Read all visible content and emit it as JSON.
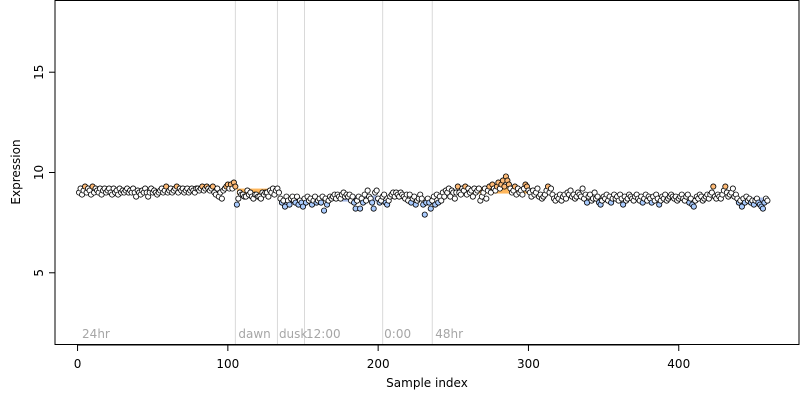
{
  "chart_data": {
    "type": "scatter",
    "title": "",
    "xlabel": "Sample index",
    "ylabel": "Expression",
    "xlim": [
      -15,
      480
    ],
    "ylim": [
      1.4,
      18.6
    ],
    "x_ticks": [
      0,
      100,
      200,
      300,
      400
    ],
    "y_ticks": [
      5,
      10,
      15
    ],
    "grid": false,
    "legend": "none",
    "colors": {
      "high": "#ffbb77",
      "low": "#aaccff",
      "neutral": "#ffffff",
      "point_edge": "#000000",
      "divider": "#d9d9d9",
      "segment_label": "#a6a6a6",
      "bar_high": "#ffa533",
      "bar_low": "#8fa8e0"
    },
    "dividers": [
      105,
      133,
      151,
      203,
      236
    ],
    "segment_labels": [
      {
        "text": "24hr",
        "x": 3
      },
      {
        "text": "dawn",
        "x": 107
      },
      {
        "text": "dusk",
        "x": 134
      },
      {
        "text": "12:00",
        "x": 152
      },
      {
        "text": "0:00",
        "x": 204
      },
      {
        "text": "48hr",
        "x": 238
      }
    ],
    "series": [
      {
        "x_start": 1,
        "y": [
          9.0,
          9.2,
          8.9,
          9.1,
          9.3,
          9.0,
          9.2,
          9.1,
          8.9,
          9.3,
          9.0,
          9.2,
          9.1,
          9.0,
          9.2,
          8.9,
          9.1,
          9.2,
          9.0,
          9.1,
          9.2,
          9.0,
          8.9,
          9.2,
          9.0,
          9.1,
          8.9,
          9.2,
          9.0,
          9.1,
          9.0,
          9.1,
          9.2,
          9.0,
          9.1,
          9.0,
          9.2,
          9.0,
          8.8,
          9.1,
          9.0,
          8.9,
          9.1,
          9.0,
          9.2,
          9.0,
          8.8,
          9.0,
          9.2,
          9.0,
          9.1,
          9.0,
          8.9,
          9.0,
          9.1,
          9.2,
          9.0,
          9.1,
          9.3,
          9.0,
          9.1,
          9.2,
          9.0,
          9.1,
          9.2,
          9.3,
          9.0,
          9.2,
          9.1,
          9.2,
          9.0,
          9.1,
          9.2,
          9.0,
          9.1,
          9.2,
          9.1,
          9.0,
          9.2,
          9.2,
          9.1,
          9.2,
          9.3,
          9.1,
          9.2,
          9.3,
          9.2,
          9.1,
          9.2,
          9.3,
          9.0,
          8.9,
          9.2,
          8.8,
          9.0,
          8.7,
          9.1,
          9.2,
          9.3,
          9.4,
          9.2,
          9.4,
          9.2,
          9.5,
          9.3,
          8.4,
          8.7,
          9.0,
          8.9,
          8.9,
          8.8,
          8.8,
          9.1,
          8.9,
          9.0,
          8.8,
          8.7,
          8.9,
          8.9,
          8.8,
          8.8,
          8.7,
          9.0,
          8.9,
          9.0,
          9.0,
          8.8,
          9.1,
          9.0,
          9.2,
          8.9,
          9.1,
          9.2,
          9.0,
          8.7,
          8.5,
          8.6,
          8.3,
          8.8,
          8.6,
          8.4,
          8.7,
          8.8,
          8.6,
          8.5,
          8.8,
          8.4,
          8.6,
          8.5,
          8.3,
          8.7,
          8.5,
          8.8,
          8.6,
          8.7,
          8.4,
          8.6,
          8.8,
          8.5,
          8.6,
          8.7,
          8.5,
          8.8,
          8.1,
          8.7,
          8.4,
          8.6,
          8.8,
          8.7,
          8.8,
          8.9,
          8.7,
          8.9,
          8.8,
          8.7,
          8.9,
          9.0,
          8.8,
          8.9,
          8.8,
          8.9,
          8.6,
          8.8,
          8.5,
          8.2,
          8.6,
          8.8,
          8.2,
          8.7,
          8.5,
          8.9,
          8.6,
          9.1,
          8.8,
          8.7,
          8.5,
          8.2,
          9.0,
          9.1,
          8.7,
          8.5,
          8.6,
          8.8,
          8.9,
          8.5,
          8.4,
          8.6,
          8.8,
          8.9,
          9.0,
          8.8,
          9.0,
          8.9,
          8.8,
          9.0,
          8.9,
          8.8,
          8.7,
          8.9,
          8.6,
          8.9,
          8.5,
          8.7,
          8.8,
          8.4,
          8.6,
          8.7,
          8.9,
          8.7,
          8.4,
          7.9,
          8.5,
          8.7,
          8.5,
          8.2,
          8.6,
          8.8,
          8.4,
          8.9,
          8.5,
          8.8,
          8.6,
          9.0,
          8.8,
          9.1,
          9.0,
          9.2,
          8.8,
          9.1,
          9.0,
          8.7,
          9.0,
          9.3,
          9.0,
          8.9,
          9.2,
          9.1,
          9.3,
          8.9,
          9.2,
          9.0,
          9.1,
          8.8,
          9.2,
          9.0,
          9.1,
          9.2,
          8.6,
          8.8,
          9.0,
          9.2,
          8.7,
          9.1,
          9.3,
          9.0,
          9.4,
          9.2,
          9.1,
          9.3,
          9.5,
          9.2,
          9.4,
          9.6,
          9.3,
          9.8,
          9.6,
          9.4,
          9.2,
          9.0,
          9.1,
          9.3,
          8.9,
          9.2,
          9.0,
          9.1,
          8.9,
          9.2,
          9.4,
          9.3,
          9.1,
          9.0,
          8.8,
          9.1,
          8.9,
          9.0,
          9.2,
          8.8,
          8.9,
          8.7,
          8.8,
          8.9,
          9.1,
          9.3,
          9.0,
          9.2,
          8.9,
          8.7,
          8.6,
          8.8,
          8.7,
          8.9,
          8.6,
          8.8,
          8.9,
          8.7,
          9.0,
          8.9,
          9.1,
          8.8,
          8.9,
          8.7,
          8.8,
          9.0,
          8.9,
          8.8,
          9.2,
          8.7,
          8.9,
          8.5,
          8.8,
          8.9,
          8.6,
          8.7,
          9.0,
          8.7,
          8.8,
          8.5,
          8.4,
          8.6,
          8.8,
          8.7,
          8.9,
          8.6,
          8.8,
          8.5,
          8.7,
          8.9,
          8.7,
          8.8,
          8.6,
          8.9,
          8.7,
          8.4,
          8.8,
          8.6,
          8.7,
          8.9,
          8.8,
          8.7,
          8.6,
          8.8,
          8.9,
          8.7,
          8.6,
          8.8,
          8.5,
          8.7,
          8.9,
          8.6,
          8.8,
          8.7,
          8.5,
          8.8,
          8.6,
          8.9,
          8.7,
          8.4,
          8.6,
          8.8,
          8.7,
          8.9,
          8.6,
          8.7,
          8.8,
          8.9,
          8.8,
          8.7,
          8.8,
          8.6,
          8.7,
          8.8,
          8.9,
          8.7,
          8.6,
          8.8,
          8.9,
          8.5,
          8.7,
          8.4,
          8.3,
          8.6,
          8.8,
          8.7,
          8.9,
          8.8,
          8.6,
          8.7,
          8.8,
          8.9,
          8.7,
          8.9,
          9.0,
          9.3,
          8.8,
          8.7,
          8.9,
          8.8,
          8.7,
          8.9,
          9.1,
          9.3,
          9.0,
          8.8,
          8.9,
          9.0,
          9.2,
          8.8,
          8.9,
          8.7,
          8.5,
          8.6,
          8.3,
          8.7,
          8.5,
          8.8,
          8.6,
          8.7,
          8.5,
          8.6,
          8.4,
          8.6,
          8.7,
          8.5,
          8.4,
          8.3,
          8.2,
          8.5,
          8.7,
          8.6
        ]
      }
    ],
    "baseline_bars": [
      {
        "x0": 106,
        "x1": 132,
        "value": 9.05,
        "kind": "high"
      },
      {
        "x0": 134,
        "x1": 150,
        "value": 8.55,
        "kind": "low"
      },
      {
        "x0": 176,
        "x1": 200,
        "value": 8.7,
        "kind": "low"
      },
      {
        "x0": 262,
        "x1": 300,
        "value": 9.1,
        "kind": "high"
      },
      {
        "x0": 438,
        "x1": 460,
        "value": 8.6,
        "kind": "low"
      }
    ]
  }
}
